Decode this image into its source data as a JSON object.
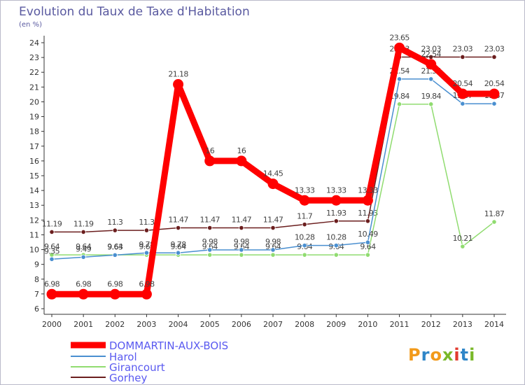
{
  "chart_data": {
    "type": "line",
    "title": "Evolution du Taux de Taxe d'Habitation",
    "ylabel": "(en %)",
    "xlabel": "",
    "ylim": [
      6,
      24
    ],
    "yticks": [
      6,
      7,
      8,
      9,
      10,
      11,
      12,
      13,
      14,
      15,
      16,
      17,
      18,
      19,
      20,
      21,
      22,
      23,
      24
    ],
    "x": [
      "2000",
      "2001",
      "2002",
      "2003",
      "2004",
      "2005",
      "2006",
      "2007",
      "2008",
      "2009",
      "2010",
      "2011",
      "2012",
      "2013",
      "2014"
    ],
    "grid": false,
    "legend": "bottom-left",
    "series": [
      {
        "name": "Gorhey",
        "color": "#6b1e1e",
        "values": [
          11.19,
          11.19,
          11.3,
          11.3,
          11.47,
          11.47,
          11.47,
          11.47,
          11.7,
          11.93,
          11.93,
          23.03,
          23.03,
          23.03,
          23.03
        ],
        "labels": [
          "11.19",
          "11.19",
          "11.3",
          "11.3",
          "11.47",
          "11.47",
          "11.47",
          "11.47",
          "11.7",
          "11.93",
          "11.93",
          "23.03",
          "23.03",
          "23.03",
          "23.03"
        ]
      },
      {
        "name": "Girancourt",
        "color": "#90dc70",
        "values": [
          9.64,
          9.64,
          9.64,
          9.64,
          9.64,
          9.64,
          9.64,
          9.64,
          9.64,
          9.64,
          9.64,
          19.84,
          19.84,
          10.21,
          11.87
        ],
        "labels": [
          "9.64",
          "9.64",
          "9.64",
          "9.64",
          "9.64",
          "9.64",
          "9.64",
          "9.64",
          "9.64",
          "9.64",
          "9.64",
          "19.84",
          "19.84",
          "10.21",
          "11.87"
        ]
      },
      {
        "name": "Harol",
        "color": "#4a8fd0",
        "values": [
          9.35,
          9.49,
          9.63,
          9.78,
          9.78,
          9.98,
          9.98,
          9.98,
          10.28,
          10.28,
          10.49,
          21.54,
          21.54,
          19.87,
          19.87
        ],
        "labels": [
          "9.35",
          "9.49",
          "9.63",
          "9.78",
          "9.78",
          "9.98",
          "9.98",
          "9.98",
          "10.28",
          "10.28",
          "10.49",
          "21.54",
          "21.54",
          "19.87",
          "19.87"
        ]
      },
      {
        "name": "DOMMARTIN-AUX-BOIS",
        "color": "#ff0000",
        "values": [
          6.98,
          6.98,
          6.98,
          6.98,
          21.18,
          16,
          16,
          14.45,
          13.33,
          13.33,
          13.33,
          23.65,
          22.54,
          20.54,
          20.54
        ],
        "labels": [
          "6.98",
          "6.98",
          "6.98",
          "6.98",
          "21.18",
          "16",
          "16",
          "14.45",
          "13.33",
          "13.33",
          "13.33",
          "23.65",
          "22.54",
          "20.54",
          "20.54"
        ]
      }
    ]
  },
  "legend_items": [
    {
      "label": "DOMMARTIN-AUX-BOIS",
      "color": "#ff0000"
    },
    {
      "label": "Harol",
      "color": "#4a8fd0"
    },
    {
      "label": "Girancourt",
      "color": "#90dc70"
    },
    {
      "label": "Gorhey",
      "color": "#6b1e1e"
    }
  ],
  "watermark": "Proxiti"
}
